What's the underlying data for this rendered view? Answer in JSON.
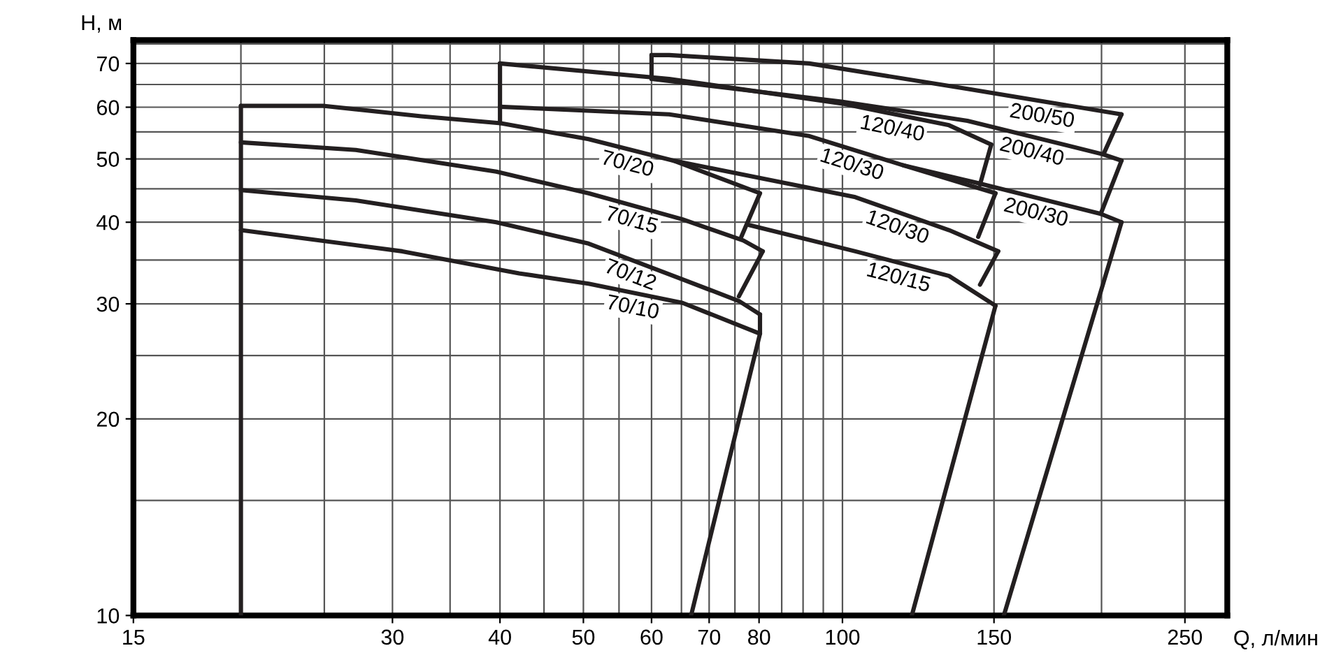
{
  "chart_data": {
    "type": "line",
    "xlabel": "Q, л/мин",
    "ylabel": "H, м",
    "log": "xy",
    "grid": true,
    "xlim": [
      15,
      280
    ],
    "ylim": [
      10,
      76
    ],
    "xticks": [
      15,
      30,
      40,
      50,
      60,
      70,
      80,
      100,
      150,
      250
    ],
    "yticks": [
      10,
      20,
      30,
      40,
      50,
      60,
      70
    ],
    "series": [
      {
        "color": "#231f20",
        "x": [
          20,
          20
        ],
        "values": [
          10,
          60.3
        ]
      },
      {
        "name": "70/20",
        "color": "#231f20",
        "x": [
          20,
          24.9,
          32.4,
          40.1,
          50.7,
          63.6,
          80.2
        ],
        "values": [
          60.3,
          60.3,
          58.1,
          56.7,
          53.6,
          49.7,
          44.3
        ]
      },
      {
        "name": "70/15",
        "color": "#231f20",
        "x": [
          20,
          27.2,
          39.6,
          50.7,
          65.2,
          76.7,
          80.8
        ],
        "values": [
          53.0,
          51.6,
          47.8,
          44.3,
          40.4,
          37.5,
          36.1
        ]
      },
      {
        "name": "70/12",
        "color": "#231f20",
        "x": [
          20,
          27.2,
          39.6,
          50.7,
          65.2,
          75.8,
          80.2
        ],
        "values": [
          44.8,
          43.2,
          40.0,
          37.1,
          32.7,
          30.3,
          28.9
        ]
      },
      {
        "name": "70/10",
        "color": "#231f20",
        "x": [
          20,
          30.8,
          42.1,
          50.7,
          65.2,
          80.2
        ],
        "values": [
          38.9,
          36.1,
          33.4,
          32.2,
          30.1,
          27.0
        ]
      },
      {
        "color": "#231f20",
        "x": [
          80.2,
          76.3
        ],
        "values": [
          44.3,
          38.0
        ]
      },
      {
        "color": "#231f20",
        "x": [
          80.8,
          75.8
        ],
        "values": [
          36.1,
          30.8
        ]
      },
      {
        "color": "#231f20",
        "x": [
          80.2,
          80.2,
          66.7
        ],
        "values": [
          28.9,
          27.0,
          10
        ]
      },
      {
        "color": "#231f20",
        "x": [
          40,
          40
        ],
        "values": [
          56.7,
          70.0
        ]
      },
      {
        "name": "120/40",
        "color": "#231f20",
        "x": [
          40,
          62.9,
          99.7,
          133,
          148.9
        ],
        "values": [
          70.0,
          66.3,
          60.8,
          56.3,
          52.6
        ]
      },
      {
        "color": "#231f20",
        "x": [
          148.9,
          144.5
        ],
        "values": [
          52.6,
          45.7
        ]
      },
      {
        "name": "120/30",
        "color": "#231f20",
        "x": [
          40,
          62.9,
          91.5,
          117.6,
          150.6
        ],
        "values": [
          60.1,
          58.5,
          54.2,
          48.9,
          44.3
        ]
      },
      {
        "color": "#231f20",
        "x": [
          150.6,
          143.8
        ],
        "values": [
          44.3,
          38.0
        ]
      },
      {
        "name": "120/30",
        "color": "#231f20",
        "x": [
          63.6,
          103.5,
          133,
          151.7
        ],
        "values": [
          49.7,
          43.7,
          38.9,
          36.1
        ]
      },
      {
        "color": "#231f20",
        "x": [
          151.7,
          144.5
        ],
        "values": [
          36.1,
          32.1
        ]
      },
      {
        "name": "120/15",
        "color": "#231f20",
        "x": [
          77.9,
          103.5,
          133,
          150.6
        ],
        "values": [
          39.6,
          36.1,
          33.1,
          29.8
        ]
      },
      {
        "color": "#231f20",
        "x": [
          150.6,
          120.4
        ],
        "values": [
          29.8,
          10
        ]
      },
      {
        "color": "#231f20",
        "x": [
          60,
          60
        ],
        "values": [
          66.3,
          72.1
        ]
      },
      {
        "name": "200/50",
        "color": "#231f20",
        "x": [
          60,
          62.9,
          91.5,
          139.7,
          211
        ],
        "values": [
          72.1,
          72.1,
          70.0,
          64.0,
          58.5
        ]
      },
      {
        "color": "#231f20",
        "x": [
          211,
          201
        ],
        "values": [
          58.5,
          50.8
        ]
      },
      {
        "name": "200/40",
        "color": "#231f20",
        "x": [
          60,
          99.7,
          139.7,
          201,
          211
        ],
        "values": [
          66.3,
          61.2,
          57.2,
          50.8,
          49.7
        ]
      },
      {
        "color": "#231f20",
        "x": [
          211,
          199.6
        ],
        "values": [
          49.7,
          41.2
        ]
      },
      {
        "name": "200/30",
        "color": "#231f20",
        "x": [
          117.6,
          143.8,
          199.6,
          211
        ],
        "values": [
          48.9,
          45.9,
          41.2,
          40.0
        ]
      },
      {
        "color": "#231f20",
        "x": [
          211,
          154
        ],
        "values": [
          40.0,
          10
        ]
      }
    ]
  }
}
